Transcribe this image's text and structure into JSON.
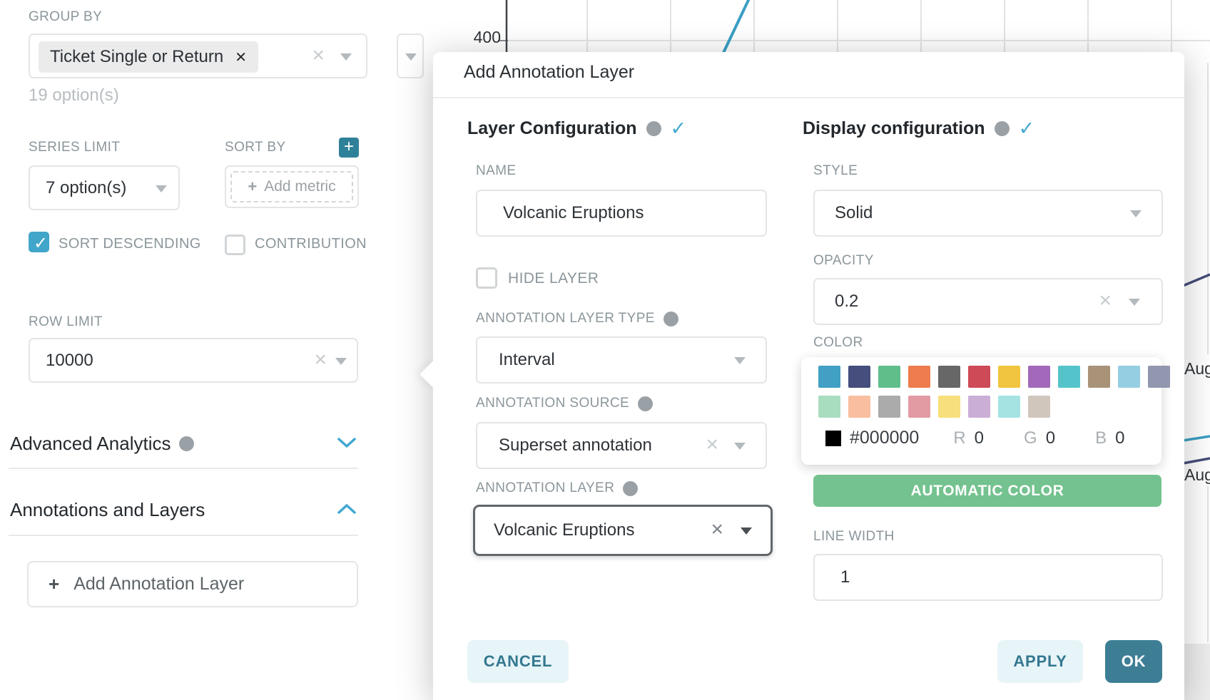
{
  "left_panel": {
    "group_by_label": "GROUP BY",
    "group_by_tag": "Ticket Single or Return",
    "group_by_hint": "19 option(s)",
    "series_limit_label": "SERIES LIMIT",
    "series_limit_value": "7 option(s)",
    "sort_by_label": "SORT BY",
    "sort_by_placeholder": "Add metric",
    "sort_descending_label": "SORT DESCENDING",
    "sort_descending_checked": true,
    "contribution_label": "CONTRIBUTION",
    "contribution_checked": false,
    "row_limit_label": "ROW LIMIT",
    "row_limit_value": "10000",
    "advanced_analytics_label": "Advanced Analytics",
    "annotations_label": "Annotations and Layers",
    "add_annotation_button": "Add Annotation Layer"
  },
  "chart": {
    "ytick": "400",
    "xtick1": "Aug",
    "xtick2": "Aug"
  },
  "modal": {
    "title": "Add Annotation Layer",
    "layer": {
      "heading": "Layer Configuration",
      "name_label": "NAME",
      "name_value": "Volcanic Eruptions",
      "hide_layer_label": "HIDE LAYER",
      "hide_layer_checked": false,
      "type_label": "ANNOTATION LAYER TYPE",
      "type_value": "Interval",
      "source_label": "ANNOTATION SOURCE",
      "source_value": "Superset annotation",
      "layer_label": "ANNOTATION LAYER",
      "layer_value": "Volcanic Eruptions"
    },
    "display": {
      "heading": "Display configuration",
      "style_label": "STYLE",
      "style_value": "Solid",
      "opacity_label": "OPACITY",
      "opacity_value": "0.2",
      "color_label": "COLOR",
      "swatches_row1": [
        "#41A0C4",
        "#454E7C",
        "#60BE8B",
        "#EE7C4F",
        "#676767",
        "#CE4A57",
        "#F1C53F",
        "#A269BA",
        "#55C4CA",
        "#A89378",
        "#95CEE2",
        "#9296AE"
      ],
      "swatches_row2": [
        "#A9DDBF",
        "#F8BE9F",
        "#ABABAB",
        "#E29AA3",
        "#F6DF7C",
        "#CBAED6",
        "#A5E3E3",
        "#D1C6BC"
      ],
      "hex_value": "#000000",
      "r_label": "R",
      "r_value": "0",
      "g_label": "G",
      "g_value": "0",
      "b_label": "B",
      "b_value": "0",
      "auto_color_button": "AUTOMATIC COLOR",
      "line_width_label": "LINE WIDTH",
      "line_width_value": "1"
    },
    "cancel_button": "CANCEL",
    "apply_button": "APPLY",
    "ok_button": "OK"
  },
  "colors": {
    "accent_teal": "#41A6C9",
    "ok_button_bg": "#3D7E95",
    "automatic_color_bg": "#74C28F",
    "chart_line_blue": "#3A9FC4",
    "chart_line_navy": "#474E7B",
    "selected_hex": "#000000"
  }
}
